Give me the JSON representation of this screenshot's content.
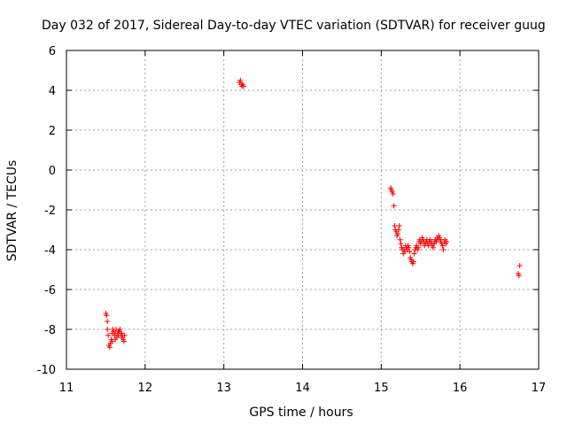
{
  "chart_data": {
    "type": "scatter",
    "title": "Day 032 of 2017, Sidereal Day-to-day VTEC variation (SDTVAR) for receiver guug",
    "xlabel": "GPS time / hours",
    "ylabel": "SDTVAR / TECUs",
    "xlim": [
      11,
      17
    ],
    "ylim": [
      -10,
      6
    ],
    "xticks": [
      11,
      12,
      13,
      14,
      15,
      16,
      17
    ],
    "yticks": [
      -10,
      -8,
      -6,
      -4,
      -2,
      0,
      2,
      4,
      6
    ],
    "grid": true,
    "marker": "+",
    "color": "#ff0000",
    "series": [
      {
        "name": "SDTVAR",
        "x": [
          11.5,
          11.51,
          11.52,
          11.52,
          11.53,
          11.54,
          11.55,
          11.56,
          11.57,
          11.58,
          11.59,
          11.6,
          11.61,
          11.62,
          11.63,
          11.64,
          11.65,
          11.66,
          11.67,
          11.68,
          11.69,
          11.7,
          11.71,
          11.72,
          11.73,
          11.74,
          11.58,
          11.62,
          11.66,
          11.7,
          13.2,
          13.21,
          13.22,
          13.23,
          13.24,
          13.25,
          15.12,
          15.13,
          15.14,
          15.15,
          15.16,
          15.17,
          15.18,
          15.19,
          15.2,
          15.21,
          15.22,
          15.23,
          15.24,
          15.25,
          15.26,
          15.27,
          15.28,
          15.29,
          15.3,
          15.31,
          15.32,
          15.33,
          15.34,
          15.35,
          15.36,
          15.37,
          15.38,
          15.39,
          15.4,
          15.41,
          15.42,
          15.43,
          15.44,
          15.45,
          15.46,
          15.47,
          15.48,
          15.49,
          15.5,
          15.51,
          15.52,
          15.53,
          15.54,
          15.55,
          15.56,
          15.57,
          15.58,
          15.59,
          15.6,
          15.61,
          15.62,
          15.63,
          15.64,
          15.65,
          15.66,
          15.67,
          15.68,
          15.69,
          15.7,
          15.71,
          15.72,
          15.73,
          15.74,
          15.75,
          15.76,
          15.77,
          15.78,
          15.79,
          15.8,
          15.81,
          15.82,
          15.83,
          16.74,
          16.75,
          16.76
        ],
        "y": [
          -7.2,
          -7.3,
          -7.6,
          -8.0,
          -8.3,
          -8.8,
          -8.9,
          -8.7,
          -8.5,
          -8.2,
          -8.0,
          -8.1,
          -8.3,
          -8.2,
          -8.0,
          -8.4,
          -8.2,
          -8.3,
          -8.1,
          -8.0,
          -8.2,
          -8.4,
          -8.3,
          -8.5,
          -8.6,
          -8.3,
          -8.6,
          -8.5,
          -8.1,
          -8.2,
          4.4,
          4.5,
          4.3,
          4.2,
          4.3,
          4.2,
          -0.9,
          -1.0,
          -1.1,
          -1.2,
          -1.8,
          -2.8,
          -3.0,
          -3.1,
          -3.3,
          -3.2,
          -3.0,
          -2.8,
          -3.5,
          -3.7,
          -3.9,
          -4.0,
          -4.2,
          -4.0,
          -4.1,
          -3.8,
          -3.9,
          -4.0,
          -3.8,
          -3.9,
          -4.1,
          -4.4,
          -4.5,
          -4.6,
          -4.7,
          -4.6,
          -4.2,
          -4.0,
          -3.9,
          -3.8,
          -4.0,
          -3.9,
          -3.6,
          -3.5,
          -3.7,
          -3.6,
          -3.4,
          -3.5,
          -3.6,
          -3.8,
          -3.7,
          -3.6,
          -3.5,
          -3.7,
          -3.8,
          -3.6,
          -3.5,
          -3.7,
          -3.6,
          -3.8,
          -3.9,
          -3.7,
          -3.6,
          -3.5,
          -3.6,
          -3.4,
          -3.5,
          -3.3,
          -3.4,
          -3.5,
          -3.6,
          -3.7,
          -3.8,
          -4.0,
          -3.6,
          -3.5,
          -3.7,
          -3.6,
          -5.2,
          -5.3,
          -4.8
        ]
      }
    ]
  }
}
